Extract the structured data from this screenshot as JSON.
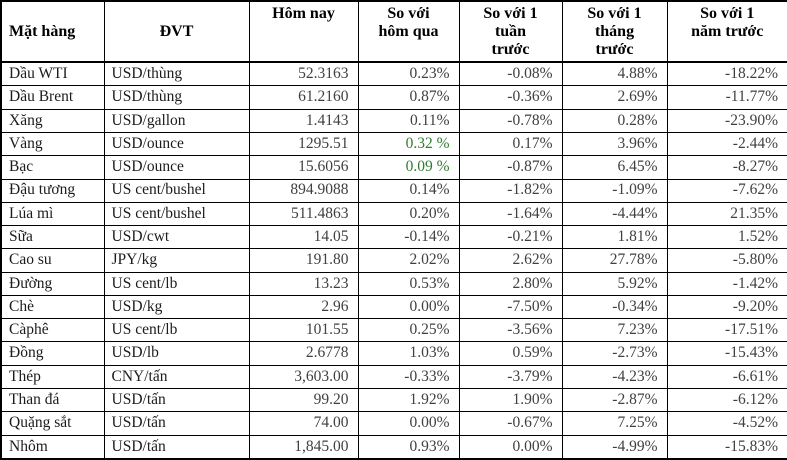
{
  "colors": {
    "background": "#ffffff",
    "border": "#000000",
    "header_text": "#000000",
    "name_text": "#1c1c1c",
    "value_text": "#404040",
    "positive_green": "#2e7d32"
  },
  "chart_data": {
    "type": "table",
    "title": "",
    "columns": [
      "Mặt hàng",
      "ĐVT",
      "Hôm nay",
      "So với\nhôm qua",
      "So với 1\ntuần\ntrước",
      "So với 1\ntháng\ntrước",
      "So với 1\nnăm trước"
    ],
    "rows": [
      {
        "name": "Dầu WTI",
        "unit": "USD/thùng",
        "today": "52.3163",
        "vs_yesterday": "0.23%",
        "vs_week": "-0.08%",
        "vs_month": "4.88%",
        "vs_year": "-18.22%",
        "vs_yesterday_green": false
      },
      {
        "name": "Dầu Brent",
        "unit": "USD/thùng",
        "today": "61.2160",
        "vs_yesterday": "0.87%",
        "vs_week": "-0.36%",
        "vs_month": "2.69%",
        "vs_year": "-11.77%",
        "vs_yesterday_green": false
      },
      {
        "name": "Xăng",
        "unit": "USD/gallon",
        "today": "1.4143",
        "vs_yesterday": "0.11%",
        "vs_week": "-0.78%",
        "vs_month": "0.28%",
        "vs_year": "-23.90%",
        "vs_yesterday_green": false
      },
      {
        "name": "Vàng",
        "unit": "USD/ounce",
        "today": "1295.51",
        "vs_yesterday": "0.32 %",
        "vs_week": "0.17%",
        "vs_month": "3.96%",
        "vs_year": "-2.44%",
        "vs_yesterday_green": true
      },
      {
        "name": "Bạc",
        "unit": "USD/ounce",
        "today": "15.6056",
        "vs_yesterday": "0.09 %",
        "vs_week": "-0.87%",
        "vs_month": "6.45%",
        "vs_year": "-8.27%",
        "vs_yesterday_green": true
      },
      {
        "name": "Đậu tương",
        "unit": "US cent/bushel",
        "today": "894.9088",
        "vs_yesterday": "0.14%",
        "vs_week": "-1.82%",
        "vs_month": "-1.09%",
        "vs_year": "-7.62%",
        "vs_yesterday_green": false
      },
      {
        "name": "Lúa mì",
        "unit": "US cent/bushel",
        "today": "511.4863",
        "vs_yesterday": "0.20%",
        "vs_week": "-1.64%",
        "vs_month": "-4.44%",
        "vs_year": "21.35%",
        "vs_yesterday_green": false
      },
      {
        "name": "Sữa",
        "unit": "USD/cwt",
        "today": "14.05",
        "vs_yesterday": "-0.14%",
        "vs_week": "-0.21%",
        "vs_month": "1.81%",
        "vs_year": "1.52%",
        "vs_yesterday_green": false
      },
      {
        "name": "Cao su",
        "unit": "JPY/kg",
        "today": "191.80",
        "vs_yesterday": "2.02%",
        "vs_week": "2.62%",
        "vs_month": "27.78%",
        "vs_year": "-5.80%",
        "vs_yesterday_green": false
      },
      {
        "name": "Đường",
        "unit": "US cent/lb",
        "today": "13.23",
        "vs_yesterday": "0.53%",
        "vs_week": "2.80%",
        "vs_month": "5.92%",
        "vs_year": "-1.42%",
        "vs_yesterday_green": false
      },
      {
        "name": "Chè",
        "unit": "USD/kg",
        "today": "2.96",
        "vs_yesterday": "0.00%",
        "vs_week": "-7.50%",
        "vs_month": "-0.34%",
        "vs_year": "-9.20%",
        "vs_yesterday_green": false
      },
      {
        "name": "Càphê",
        "unit": "US cent/lb",
        "today": "101.55",
        "vs_yesterday": "0.25%",
        "vs_week": "-3.56%",
        "vs_month": "7.23%",
        "vs_year": "-17.51%",
        "vs_yesterday_green": false
      },
      {
        "name": "Đồng",
        "unit": "USD/lb",
        "today": "2.6778",
        "vs_yesterday": "1.03%",
        "vs_week": "0.59%",
        "vs_month": "-2.73%",
        "vs_year": "-15.43%",
        "vs_yesterday_green": false
      },
      {
        "name": "Thép",
        "unit": "CNY/tấn",
        "today": "3,603.00",
        "vs_yesterday": "-0.33%",
        "vs_week": "-3.79%",
        "vs_month": "-4.23%",
        "vs_year": "-6.61%",
        "vs_yesterday_green": false
      },
      {
        "name": "Than đá",
        "unit": "USD/tấn",
        "today": "99.20",
        "vs_yesterday": "1.92%",
        "vs_week": "1.90%",
        "vs_month": "-2.87%",
        "vs_year": "-6.12%",
        "vs_yesterday_green": false
      },
      {
        "name": "Quặng sắt",
        "unit": "USD/tấn",
        "today": "74.00",
        "vs_yesterday": "0.00%",
        "vs_week": "-0.67%",
        "vs_month": "7.25%",
        "vs_year": "-4.52%",
        "vs_yesterday_green": false
      },
      {
        "name": "Nhôm",
        "unit": "USD/tấn",
        "today": "1,845.00",
        "vs_yesterday": "0.93%",
        "vs_week": "0.00%",
        "vs_month": "-4.99%",
        "vs_year": "-15.83%",
        "vs_yesterday_green": false
      }
    ]
  }
}
